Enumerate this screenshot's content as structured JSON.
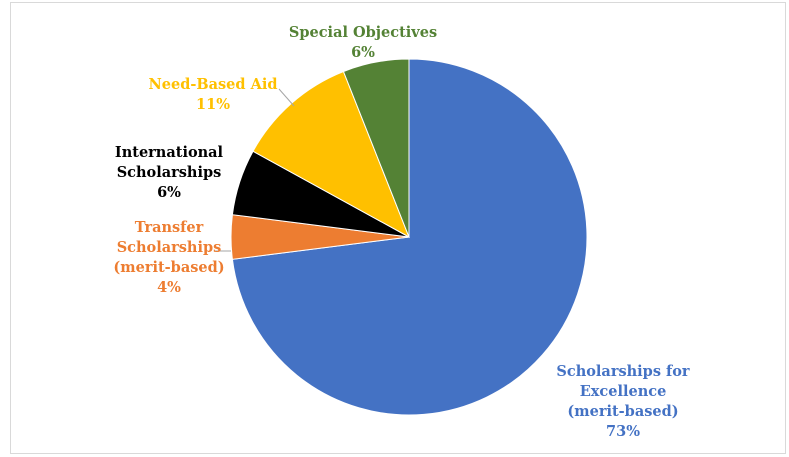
{
  "chart_data": {
    "type": "pie",
    "title": "",
    "slices": [
      {
        "name": "Scholarships for Excellence (merit-based)",
        "label_lines": [
          "Scholarships for",
          "Excellence",
          "(merit-based)"
        ],
        "value": 73,
        "value_label": "73%",
        "color": "#4472C4"
      },
      {
        "name": "Transfer Scholarships (merit-based)",
        "label_lines": [
          "Transfer",
          "Scholarships",
          "(merit-based)"
        ],
        "value": 4,
        "value_label": "4%",
        "color": "#ED7D31"
      },
      {
        "name": "International Scholarships",
        "label_lines": [
          "International",
          "Scholarships"
        ],
        "value": 6,
        "value_label": "6%",
        "color": "#000000"
      },
      {
        "name": "Need-Based Aid",
        "label_lines": [
          "Need-Based Aid"
        ],
        "value": 11,
        "value_label": "11%",
        "color": "#FFC000"
      },
      {
        "name": "Special Objectives",
        "label_lines": [
          "Special Objectives"
        ],
        "value": 6,
        "value_label": "6%",
        "color": "#548235"
      }
    ],
    "start_angle_deg": 0,
    "direction": "clockwise",
    "legend": "none"
  }
}
